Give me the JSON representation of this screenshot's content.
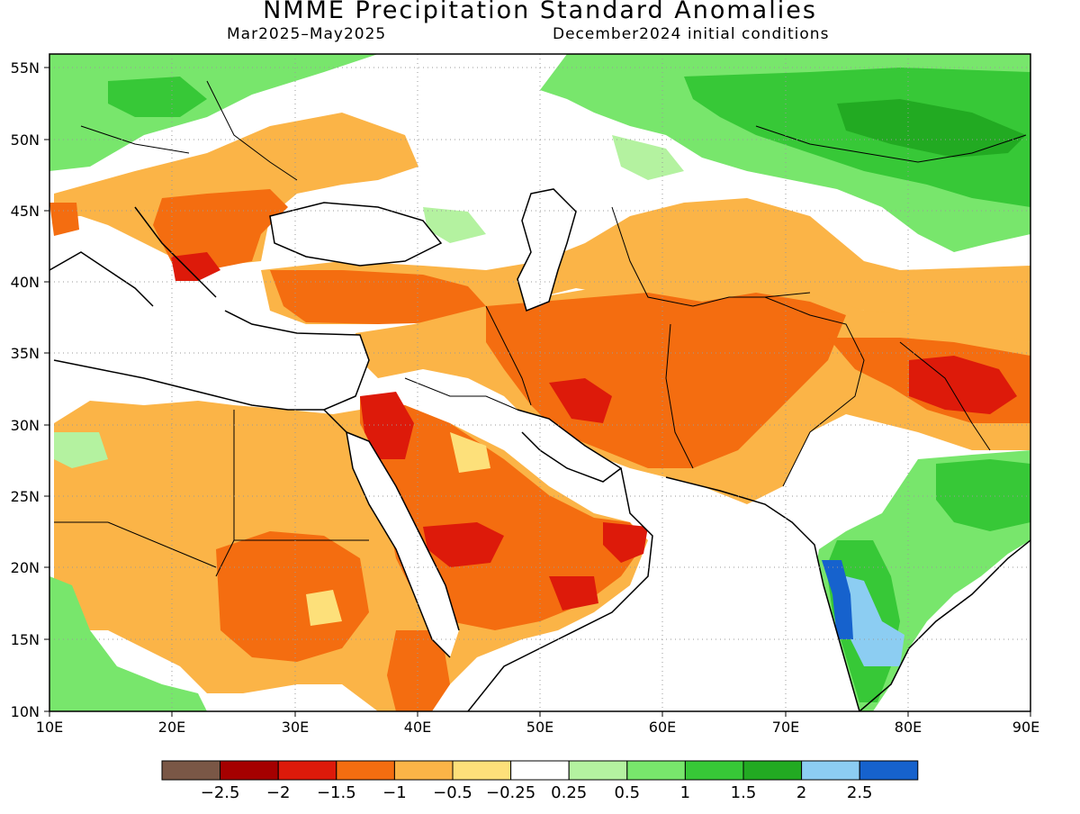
{
  "header": {
    "title": "NMME Precipitation Standard Anomalies",
    "period": "Mar2025–May2025",
    "initial_conditions": "December2024 initial conditions"
  },
  "map": {
    "lat_range": [
      10,
      56
    ],
    "lon_range": [
      10,
      90
    ],
    "lat_ticks": [
      "10N",
      "15N",
      "20N",
      "25N",
      "30N",
      "35N",
      "40N",
      "45N",
      "50N",
      "55N"
    ],
    "lon_ticks": [
      "10E",
      "20E",
      "30E",
      "40E",
      "50E",
      "60E",
      "70E",
      "80E",
      "90E"
    ],
    "grid": true
  },
  "legend": {
    "colors": [
      "#7a5746",
      "#a50000",
      "#dd1a0a",
      "#f46d10",
      "#fbb447",
      "#fde07a",
      "#ffffff",
      "#b4f2a0",
      "#78e66c",
      "#37c837",
      "#22aa22",
      "#8ccdf2",
      "#1662cd"
    ],
    "labels": [
      "−2.5",
      "−2",
      "−1.5",
      "−1",
      "−0.5",
      "−0.25",
      "0.25",
      "0.5",
      "1",
      "1.5",
      "2",
      "2.5"
    ]
  }
}
